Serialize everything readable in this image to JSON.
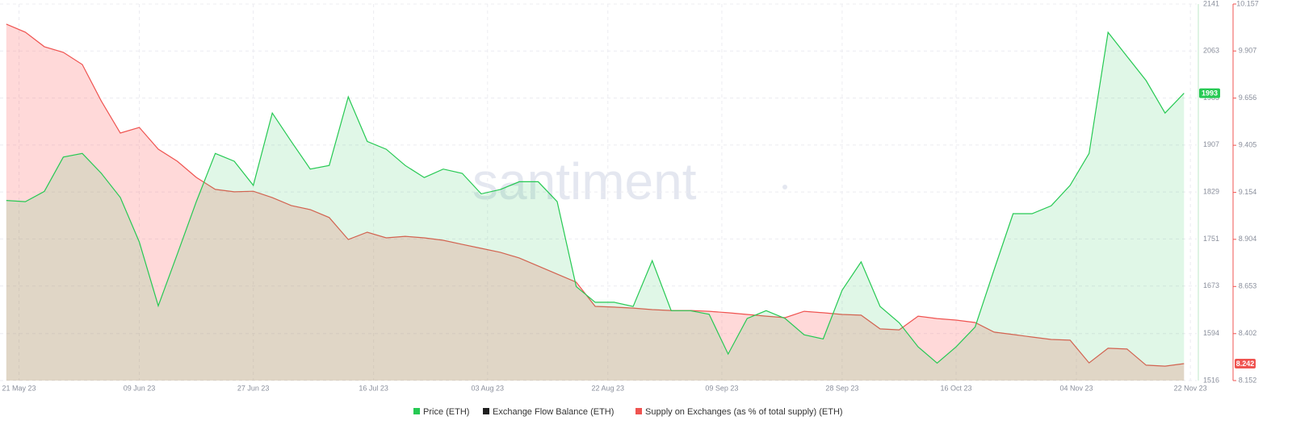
{
  "chart_data": {
    "type": "line",
    "watermark": "santiment",
    "grid": true,
    "x": [
      "2023-05-19",
      "2023-05-22",
      "2023-05-25",
      "2023-05-28",
      "2023-05-31",
      "2023-06-03",
      "2023-06-06",
      "2023-06-09",
      "2023-06-12",
      "2023-06-15",
      "2023-06-18",
      "2023-06-21",
      "2023-06-24",
      "2023-06-27",
      "2023-06-30",
      "2023-07-03",
      "2023-07-06",
      "2023-07-09",
      "2023-07-12",
      "2023-07-15",
      "2023-07-18",
      "2023-07-21",
      "2023-07-24",
      "2023-07-27",
      "2023-07-30",
      "2023-08-02",
      "2023-08-05",
      "2023-08-08",
      "2023-08-11",
      "2023-08-14",
      "2023-08-17",
      "2023-08-20",
      "2023-08-23",
      "2023-08-26",
      "2023-08-29",
      "2023-09-01",
      "2023-09-04",
      "2023-09-07",
      "2023-09-10",
      "2023-09-13",
      "2023-09-16",
      "2023-09-19",
      "2023-09-22",
      "2023-09-25",
      "2023-09-28",
      "2023-10-01",
      "2023-10-04",
      "2023-10-07",
      "2023-10-10",
      "2023-10-13",
      "2023-10-16",
      "2023-10-19",
      "2023-10-22",
      "2023-10-25",
      "2023-10-28",
      "2023-10-31",
      "2023-11-03",
      "2023-11-06",
      "2023-11-09",
      "2023-11-12",
      "2023-11-15",
      "2023-11-18",
      "2023-11-21"
    ],
    "xlim": [
      "2023-05-18",
      "2023-11-23"
    ],
    "xticks": [
      {
        "value": "2023-05-21",
        "label": "21 May 23"
      },
      {
        "value": "2023-06-09",
        "label": "09 Jun 23"
      },
      {
        "value": "2023-06-27",
        "label": "27 Jun 23"
      },
      {
        "value": "2023-07-16",
        "label": "16 Jul 23"
      },
      {
        "value": "2023-08-03",
        "label": "03 Aug 23"
      },
      {
        "value": "2023-08-22",
        "label": "22 Aug 23"
      },
      {
        "value": "2023-09-09",
        "label": "09 Sep 23"
      },
      {
        "value": "2023-09-28",
        "label": "28 Sep 23"
      },
      {
        "value": "2023-10-16",
        "label": "16 Oct 23"
      },
      {
        "value": "2023-11-04",
        "label": "04 Nov 23"
      },
      {
        "value": "2023-11-22",
        "label": "22 Nov 23"
      }
    ],
    "ylim": [
      1516,
      2141
    ],
    "yticks": [
      1516,
      1594,
      1673,
      1751,
      1829,
      1907,
      1985,
      2063,
      2141
    ],
    "y2lim": [
      8.152,
      10.157
    ],
    "y2ticks": [
      8.152,
      8.402,
      8.653,
      8.904,
      9.154,
      9.405,
      9.656,
      9.907,
      10.157
    ],
    "series": [
      {
        "name": "Price (ETH)",
        "color": "#26c953",
        "fill": "rgba(38,201,83,0.14)",
        "values": [
          1815,
          1813,
          1830,
          1887,
          1893,
          1860,
          1820,
          1746,
          1640,
          1726,
          1813,
          1893,
          1880,
          1840,
          1960,
          1913,
          1867,
          1873,
          1987,
          1913,
          1900,
          1873,
          1853,
          1867,
          1860,
          1826,
          1833,
          1846,
          1846,
          1813,
          1672,
          1646,
          1646,
          1639,
          1715,
          1632,
          1632,
          1626,
          1560,
          1619,
          1632,
          1619,
          1592,
          1585,
          1666,
          1713,
          1639,
          1612,
          1572,
          1545,
          1572,
          1605,
          1700,
          1793,
          1793,
          1806,
          1840,
          1893,
          2094,
          2054,
          2014,
          1960,
          1993
        ]
      },
      {
        "name": "Exchange Flow Balance (ETH)",
        "color": "#1f1f1f",
        "values": [
          null,
          null,
          null,
          null,
          null,
          null,
          null,
          null,
          null,
          null,
          null,
          null,
          null,
          null,
          null,
          null,
          null,
          null,
          null,
          null,
          null,
          null,
          null,
          null,
          null,
          null,
          null,
          null,
          null,
          null,
          null,
          null,
          null,
          null,
          null,
          null,
          null,
          null,
          null,
          null,
          null,
          null,
          null,
          null,
          null,
          null,
          null,
          null,
          null,
          null,
          null,
          null,
          null,
          null,
          null,
          null,
          null,
          null,
          null,
          null,
          null,
          null,
          null
        ]
      },
      {
        "name": "Supply on Exchanges (as % of total supply) (ETH)",
        "color": "#ef5350",
        "fill": "rgba(255,120,120,0.28)",
        "axis": "y2",
        "values": [
          10.05,
          10.007,
          9.93,
          9.9,
          9.835,
          9.64,
          9.47,
          9.5,
          9.384,
          9.32,
          9.234,
          9.17,
          9.157,
          9.16,
          9.126,
          9.084,
          9.062,
          9.02,
          8.903,
          8.942,
          8.912,
          8.92,
          8.912,
          8.899,
          8.877,
          8.856,
          8.835,
          8.805,
          8.762,
          8.719,
          8.676,
          8.547,
          8.543,
          8.538,
          8.53,
          8.525,
          8.525,
          8.521,
          8.513,
          8.504,
          8.495,
          8.487,
          8.521,
          8.513,
          8.504,
          8.5,
          8.427,
          8.422,
          8.495,
          8.482,
          8.474,
          8.461,
          8.41,
          8.397,
          8.384,
          8.371,
          8.367,
          8.246,
          8.324,
          8.32,
          8.234,
          8.229,
          8.242
        ]
      }
    ]
  }
}
